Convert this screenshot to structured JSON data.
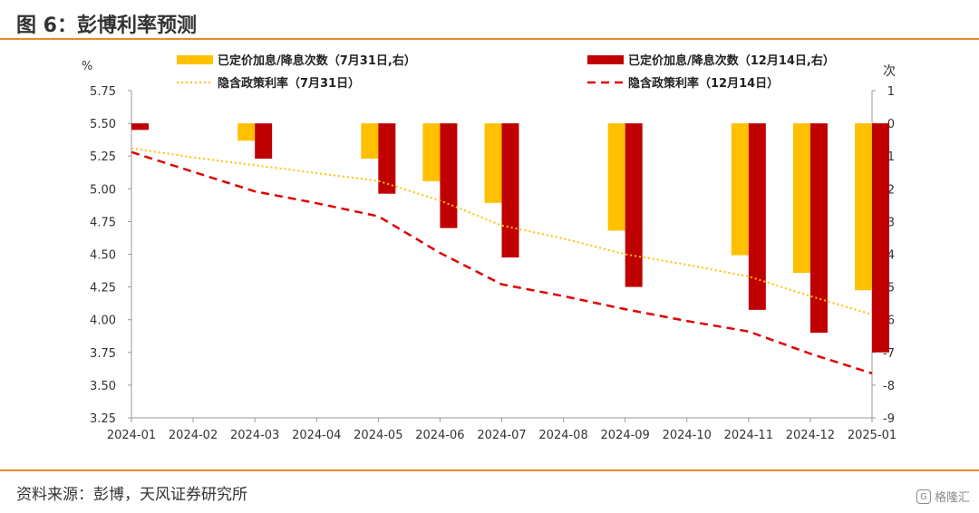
{
  "title": "图 6：彭博利率预测",
  "source": "资料来源：彭博，天风证券研究所",
  "watermark": "格隆汇",
  "colors": {
    "rule": "#E98A2C",
    "bar_jul": "#FFC000",
    "bar_dec": "#C00000",
    "line_jul": "#FFC000",
    "line_dec": "#E00000"
  },
  "chart_data": {
    "type": "bar+line",
    "x": [
      "2024-01",
      "2024-02",
      "2024-03",
      "2024-04",
      "2024-05",
      "2024-06",
      "2024-07",
      "2024-08",
      "2024-09",
      "2024-10",
      "2024-11",
      "2024-12",
      "2025-01"
    ],
    "y_left": {
      "label": "%",
      "min": 3.25,
      "max": 5.75,
      "step": 0.25,
      "ticks": [
        "5.75",
        "5.50",
        "5.25",
        "5.00",
        "4.75",
        "4.50",
        "4.25",
        "4.00",
        "3.75",
        "3.50",
        "3.25"
      ]
    },
    "y_right": {
      "label": "次",
      "min": -9,
      "max": 1,
      "step": 1,
      "ticks": [
        "1",
        "0",
        "-1",
        "-2",
        "-3",
        "-4",
        "-5",
        "-6",
        "-7",
        "-8",
        "-9"
      ]
    },
    "series": [
      {
        "name": "已定价加息/降息次数（7月31日,右）",
        "kind": "bar",
        "axis": "right",
        "values": [
          null,
          null,
          -0.53,
          null,
          -1.08,
          -1.77,
          -2.43,
          null,
          -3.28,
          null,
          -4.03,
          -4.57,
          -5.1
        ]
      },
      {
        "name": "已定价加息/降息次数（12月14日,右）",
        "kind": "bar",
        "axis": "right",
        "values": [
          -0.2,
          null,
          -1.08,
          null,
          -2.15,
          -3.2,
          -4.1,
          null,
          -5.0,
          null,
          -5.7,
          -6.4,
          -7.0
        ]
      },
      {
        "name": "隐含政策利率（7月31日）",
        "kind": "line",
        "style": "dotted",
        "axis": "left",
        "values": [
          5.31,
          5.24,
          5.18,
          5.12,
          5.06,
          4.91,
          4.72,
          4.62,
          4.5,
          4.42,
          4.33,
          4.18,
          4.04
        ]
      },
      {
        "name": "隐含政策利率（12月14日）",
        "kind": "line",
        "style": "dashed",
        "axis": "left",
        "values": [
          5.28,
          5.13,
          4.98,
          4.89,
          4.79,
          4.51,
          4.27,
          4.18,
          4.08,
          3.99,
          3.91,
          3.74,
          3.59
        ]
      }
    ],
    "legend_placement": "top",
    "grid": false
  }
}
